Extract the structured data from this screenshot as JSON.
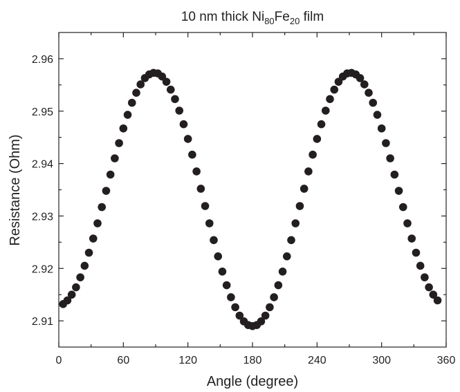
{
  "chart_data": {
    "type": "scatter",
    "title": [
      "10 nm thick Ni",
      "80",
      "Fe",
      "20",
      " film"
    ],
    "xlabel": "Angle (degree)",
    "ylabel": "Resistance (Ohm)",
    "color": "#231f20",
    "x": [
      4,
      8,
      12,
      16,
      20,
      24,
      28,
      32,
      36,
      40,
      44,
      48,
      52,
      56,
      60,
      64,
      68,
      72,
      76,
      80,
      84,
      88,
      92,
      96,
      100,
      104,
      108,
      112,
      116,
      120,
      124,
      128,
      132,
      136,
      140,
      144,
      148,
      152,
      156,
      160,
      164,
      168,
      172,
      176,
      180,
      184,
      188,
      192,
      196,
      200,
      204,
      208,
      212,
      216,
      220,
      224,
      228,
      232,
      236,
      240,
      244,
      248,
      252,
      256,
      260,
      264,
      268,
      272,
      276,
      280,
      284,
      288,
      292,
      296,
      300,
      304,
      308,
      312,
      316,
      320,
      324,
      328,
      332,
      336,
      340,
      344,
      348,
      352
    ],
    "values": [
      2.9132,
      2.9139,
      2.915,
      2.9164,
      2.9183,
      2.9205,
      2.923,
      2.9257,
      2.9286,
      2.9317,
      2.9348,
      2.9379,
      2.941,
      2.9439,
      2.9467,
      2.9493,
      2.9516,
      2.9535,
      2.9551,
      2.9563,
      2.957,
      2.9573,
      2.9572,
      2.9566,
      2.9556,
      2.9541,
      2.9523,
      2.9501,
      2.9475,
      2.9447,
      2.9417,
      2.9385,
      2.9352,
      2.9319,
      2.9286,
      2.9254,
      2.9223,
      2.9194,
      2.9168,
      2.9145,
      2.9126,
      2.911,
      2.9099,
      2.9092,
      2.909,
      2.9092,
      2.9099,
      2.911,
      2.9126,
      2.9145,
      2.9168,
      2.9194,
      2.9223,
      2.9254,
      2.9286,
      2.9319,
      2.9352,
      2.9385,
      2.9417,
      2.9447,
      2.9475,
      2.9501,
      2.9523,
      2.9541,
      2.9556,
      2.9566,
      2.9572,
      2.9573,
      2.957,
      2.9563,
      2.9551,
      2.9535,
      2.9516,
      2.9493,
      2.9467,
      2.9439,
      2.941,
      2.9379,
      2.9348,
      2.9317,
      2.9286,
      2.9257,
      2.923,
      2.9205,
      2.9183,
      2.9164,
      2.915,
      2.9139
    ],
    "xlim": [
      0,
      360
    ],
    "xticks": [
      0,
      60,
      120,
      180,
      240,
      300,
      360
    ],
    "ylim": [
      2.905,
      2.965
    ],
    "yticks": [
      2.91,
      2.92,
      2.93,
      2.94,
      2.95,
      2.96
    ]
  }
}
